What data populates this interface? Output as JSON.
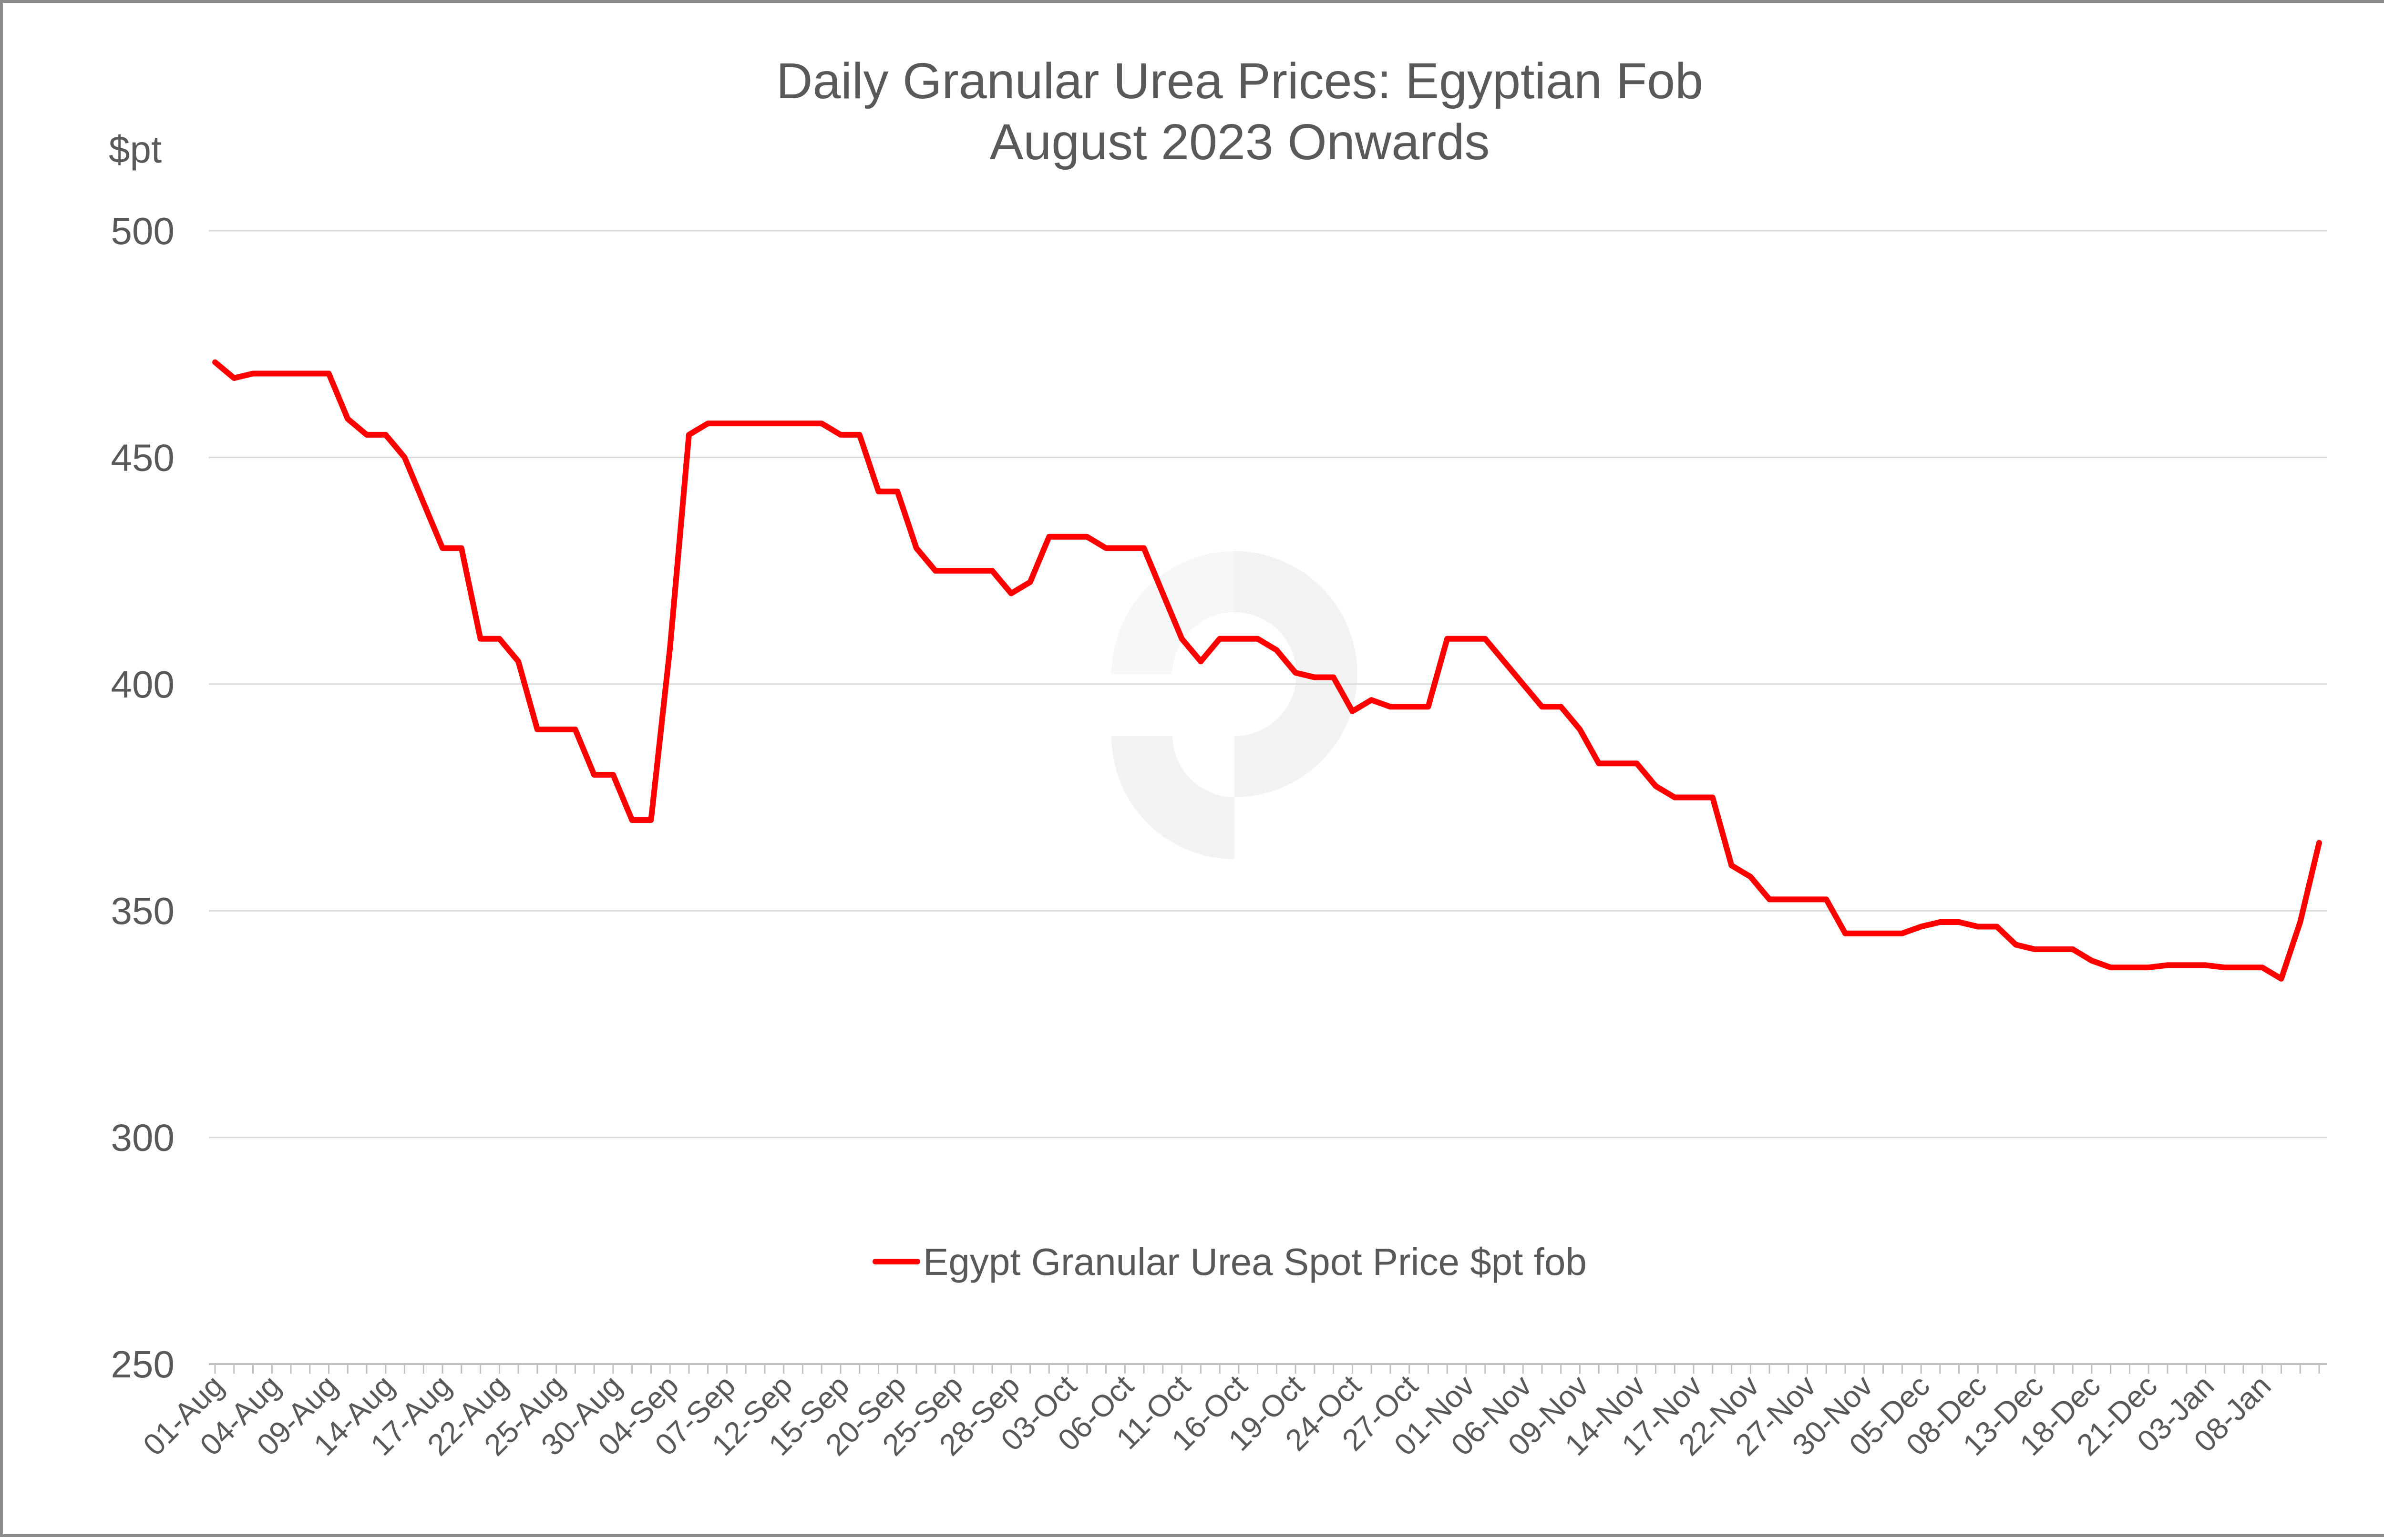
{
  "colors": {
    "series": "#ff0000",
    "gridline": "#d9d9d9",
    "axis": "#bfbfbf",
    "text": "#595959",
    "frame": "#8c8c8c",
    "watermark": "#f2f2f2"
  },
  "watermark": {
    "icon": "logo-watermark-icon"
  },
  "chart_data": {
    "type": "line",
    "title": "Daily Granular Urea Prices: Egyptian Fob",
    "subtitle": "August 2023 Onwards",
    "ylabel": "$pt",
    "xlabel": "",
    "ylim": [
      250,
      500
    ],
    "yticks": [
      250,
      300,
      350,
      400,
      450,
      500
    ],
    "grid": true,
    "legend_position": "inside-lower-center",
    "x_tick_labels": [
      "01-Aug",
      "04-Aug",
      "09-Aug",
      "14-Aug",
      "17-Aug",
      "22-Aug",
      "25-Aug",
      "30-Aug",
      "04-Sep",
      "07-Sep",
      "12-Sep",
      "15-Sep",
      "20-Sep",
      "25-Sep",
      "28-Sep",
      "03-Oct",
      "06-Oct",
      "11-Oct",
      "16-Oct",
      "19-Oct",
      "24-Oct",
      "27-Oct",
      "01-Nov",
      "06-Nov",
      "09-Nov",
      "14-Nov",
      "17-Nov",
      "22-Nov",
      "27-Nov",
      "30-Nov",
      "05-Dec",
      "08-Dec",
      "13-Dec",
      "18-Dec",
      "21-Dec",
      "03-Jan",
      "08-Jan"
    ],
    "x_tick_positions": [
      0,
      3,
      6,
      9,
      12,
      15,
      18,
      21,
      24,
      27,
      30,
      33,
      36,
      39,
      42,
      45,
      48,
      51,
      54,
      57,
      60,
      63,
      66,
      69,
      72,
      75,
      78,
      81,
      84,
      87,
      90,
      93,
      96,
      99,
      102,
      105,
      108
    ],
    "series": [
      {
        "name": "Egypt Granular Urea Spot Price $pt fob",
        "values": [
          471,
          467.5,
          468.5,
          468.5,
          468.5,
          468.5,
          468.5,
          458.5,
          455,
          455,
          450,
          440,
          430,
          430,
          410,
          410,
          405,
          390,
          390,
          390,
          380,
          380,
          370,
          370,
          408,
          455,
          457.5,
          457.5,
          457.5,
          457.5,
          457.5,
          457.5,
          457.5,
          455,
          455,
          442.5,
          442.5,
          430,
          425,
          425,
          425,
          425,
          420,
          422.5,
          432.5,
          432.5,
          432.5,
          430,
          430,
          430,
          420,
          410,
          405,
          410,
          410,
          410,
          407.5,
          402.5,
          401.5,
          401.5,
          394,
          396.5,
          395,
          395,
          395,
          410,
          410,
          410,
          405,
          400,
          395,
          395,
          390,
          382.5,
          382.5,
          382.5,
          377.5,
          375,
          375,
          375,
          360,
          357.5,
          352.5,
          352.5,
          352.5,
          352.5,
          345,
          345,
          345,
          345,
          346.5,
          347.5,
          347.5,
          346.5,
          346.5,
          342.5,
          341.5,
          341.5,
          341.5,
          339,
          337.5,
          337.5,
          337.5,
          338,
          338,
          338,
          337.5,
          337.5,
          337.5,
          335,
          347.5,
          365
        ]
      }
    ]
  }
}
